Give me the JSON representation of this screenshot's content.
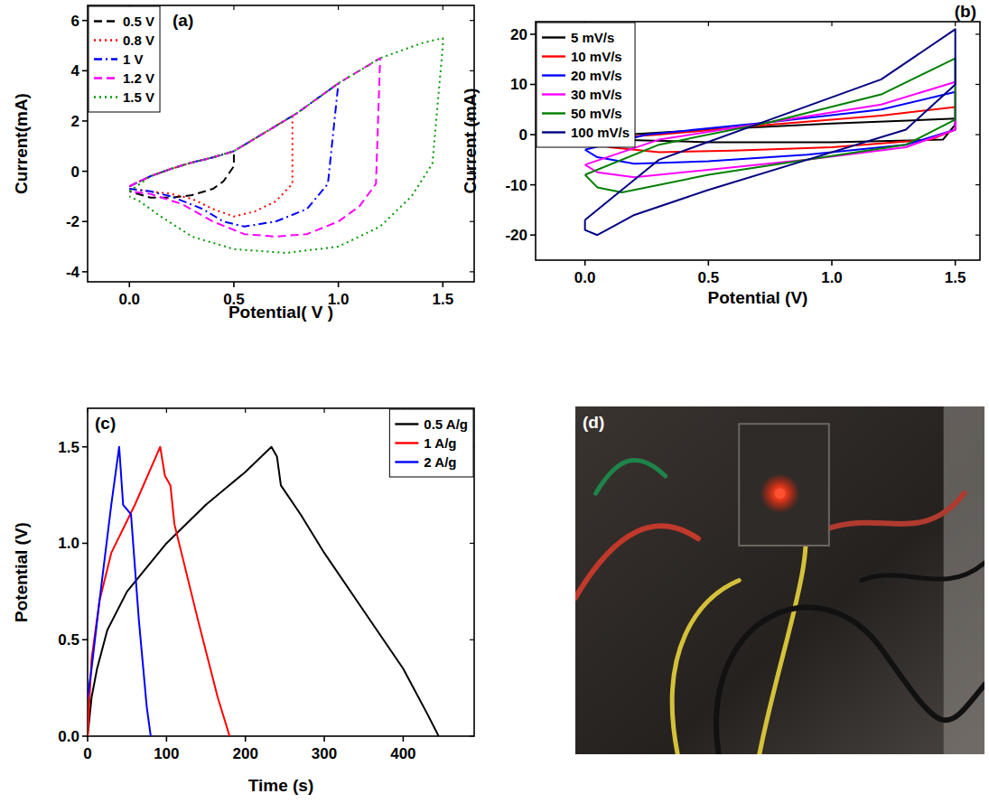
{
  "chart_data": [
    {
      "type": "line",
      "title": "(a)",
      "x_label": "Potential( V )",
      "y_label": "Current(mA)",
      "xlim": [
        -0.2,
        1.65
      ],
      "ylim": [
        -4.4,
        6.6
      ],
      "xticks": [
        {
          "value": 0,
          "label": "0.0"
        },
        0.5,
        {
          "value": 1,
          "label": "1.0"
        },
        1.5
      ],
      "yticks": [
        -4,
        -2,
        0,
        2,
        4,
        6
      ],
      "legend": "upper left",
      "series": [
        {
          "name": "0.5 V",
          "color": "#000000",
          "line_style": "dash",
          "x": [
            0,
            0.1,
            0.2,
            0.3,
            0.4,
            0.5,
            0.5,
            0.45,
            0.4,
            0.3,
            0.2,
            0.1,
            0
          ],
          "values": [
            -0.6,
            -0.2,
            0.1,
            0.35,
            0.55,
            0.8,
            0.2,
            -0.4,
            -0.7,
            -0.95,
            -1.05,
            -1.05,
            -0.8
          ]
        },
        {
          "name": "0.8 V",
          "color": "#ff0000",
          "line_style": "dot",
          "x": [
            0,
            0.1,
            0.2,
            0.3,
            0.4,
            0.5,
            0.6,
            0.7,
            0.78,
            0.78,
            0.7,
            0.6,
            0.5,
            0.4,
            0.3,
            0.2,
            0.1,
            0
          ],
          "values": [
            -0.6,
            -0.2,
            0.1,
            0.35,
            0.55,
            0.8,
            1.3,
            1.8,
            2.2,
            -0.5,
            -1.2,
            -1.6,
            -1.8,
            -1.5,
            -1.1,
            -0.9,
            -0.8,
            -0.7
          ]
        },
        {
          "name": "1 V",
          "color": "#0000ff",
          "line_style": "dashdot",
          "x": [
            0,
            0.1,
            0.2,
            0.3,
            0.4,
            0.5,
            0.6,
            0.7,
            0.8,
            0.9,
            1.0,
            0.95,
            0.85,
            0.7,
            0.55,
            0.45,
            0.35,
            0.2,
            0.1,
            0
          ],
          "values": [
            -0.6,
            -0.2,
            0.1,
            0.35,
            0.55,
            0.8,
            1.3,
            1.8,
            2.3,
            2.9,
            3.5,
            -0.5,
            -1.5,
            -2.0,
            -2.2,
            -2.0,
            -1.5,
            -1.0,
            -0.8,
            -0.7
          ]
        },
        {
          "name": "1.2 V",
          "color": "#ff00ff",
          "line_style": "dash",
          "x": [
            0,
            0.1,
            0.2,
            0.3,
            0.4,
            0.5,
            0.6,
            0.7,
            0.8,
            0.9,
            1.0,
            1.1,
            1.2,
            1.18,
            1.1,
            1.0,
            0.85,
            0.7,
            0.55,
            0.4,
            0.25,
            0.1,
            0
          ],
          "values": [
            -0.6,
            -0.2,
            0.1,
            0.35,
            0.55,
            0.8,
            1.3,
            1.8,
            2.3,
            2.9,
            3.5,
            4.0,
            4.5,
            -0.5,
            -1.4,
            -2.0,
            -2.5,
            -2.6,
            -2.5,
            -2.0,
            -1.3,
            -0.9,
            -0.8
          ]
        },
        {
          "name": "1.5 V",
          "color": "#009900",
          "line_style": "dot",
          "x": [
            0,
            0.1,
            0.2,
            0.3,
            0.4,
            0.5,
            0.6,
            0.7,
            0.8,
            0.9,
            1.0,
            1.1,
            1.2,
            1.3,
            1.4,
            1.5,
            1.5,
            1.45,
            1.35,
            1.2,
            1.0,
            0.75,
            0.5,
            0.3,
            0.15,
            0.05,
            0
          ],
          "values": [
            -0.8,
            -0.2,
            0.1,
            0.35,
            0.55,
            0.8,
            1.3,
            1.8,
            2.3,
            2.9,
            3.5,
            4.0,
            4.5,
            4.8,
            5.1,
            5.3,
            5.0,
            0.3,
            -1.0,
            -2.2,
            -3.0,
            -3.25,
            -3.1,
            -2.6,
            -1.8,
            -1.2,
            -1.0
          ]
        }
      ]
    },
    {
      "type": "line",
      "title": "(b)",
      "x_label": "Potential (V)",
      "y_label": "Current (mA)",
      "xlim": [
        -0.2,
        1.6
      ],
      "ylim": [
        -25,
        22.5
      ],
      "xticks": [
        {
          "value": 0,
          "label": "0.0"
        },
        0.5,
        {
          "value": 1,
          "label": "1.0"
        },
        1.5
      ],
      "yticks": [
        -20,
        -10,
        0,
        10,
        20
      ],
      "legend": "upper left",
      "series": [
        {
          "name": "5 mV/s",
          "color": "#000000",
          "line_style": "solid",
          "x": [
            0,
            0.5,
            1.0,
            1.5,
            1.5,
            1.45,
            1.0,
            0.5,
            0.1,
            0
          ],
          "values": [
            -0.5,
            1.0,
            2.2,
            3.2,
            2.0,
            -1.0,
            -1.5,
            -1.5,
            -1.0,
            -0.5
          ]
        },
        {
          "name": "10 mV/s",
          "color": "#ff0000",
          "line_style": "solid",
          "x": [
            0,
            0.3,
            0.75,
            1.2,
            1.5,
            1.5,
            1.4,
            1.0,
            0.6,
            0.3,
            0.1,
            0
          ],
          "values": [
            -1,
            0,
            2,
            3.8,
            5.5,
            1,
            -1,
            -2.5,
            -3.2,
            -3.5,
            -2.5,
            -1
          ]
        },
        {
          "name": "20 mV/s",
          "color": "#0000ff",
          "line_style": "solid",
          "x": [
            0,
            0.25,
            0.75,
            1.2,
            1.5,
            1.5,
            1.3,
            0.9,
            0.5,
            0.2,
            0.05,
            0
          ],
          "values": [
            -3,
            0,
            2.5,
            5,
            8.5,
            1,
            -2,
            -4,
            -5.3,
            -5.8,
            -4.5,
            -3
          ]
        },
        {
          "name": "30 mV/s",
          "color": "#ff00ff",
          "line_style": "solid",
          "x": [
            0,
            0.3,
            0.75,
            1.2,
            1.5,
            1.5,
            1.3,
            0.9,
            0.5,
            0.2,
            0.05,
            0
          ],
          "values": [
            -6,
            -1,
            2.5,
            6,
            10.5,
            1,
            -2.5,
            -5,
            -7,
            -8.5,
            -7.5,
            -6
          ]
        },
        {
          "name": "50 mV/s",
          "color": "#008000",
          "line_style": "solid",
          "x": [
            0,
            0.3,
            0.75,
            1.2,
            1.5,
            1.5,
            1.3,
            0.9,
            0.5,
            0.15,
            0.05,
            0
          ],
          "values": [
            -8,
            -2,
            2.5,
            8,
            15.2,
            3,
            -2,
            -5,
            -8,
            -11.5,
            -10.5,
            -8
          ]
        },
        {
          "name": "100 mV/s",
          "color": "#000080",
          "line_style": "solid",
          "x": [
            0,
            0.3,
            0.75,
            1.2,
            1.5,
            1.5,
            1.3,
            0.9,
            0.5,
            0.2,
            0.05,
            0,
            0
          ],
          "values": [
            -17,
            -5,
            3,
            11,
            21,
            10,
            1,
            -5,
            -11,
            -16,
            -20,
            -19,
            -17
          ]
        }
      ]
    },
    {
      "type": "line",
      "title": "(c)",
      "x_label": "Time (s)",
      "y_label": "Potential (V)",
      "xlim": [
        0,
        490
      ],
      "ylim": [
        0,
        1.7
      ],
      "xticks": [
        0,
        100,
        200,
        300,
        400
      ],
      "yticks": [
        {
          "value": 0,
          "label": "0.0"
        },
        0.5,
        {
          "value": 1,
          "label": "1.0"
        },
        1.5
      ],
      "legend": "upper right",
      "series": [
        {
          "name": "0.5 A/g",
          "color": "#000000",
          "line_style": "solid",
          "x": [
            0,
            5,
            12,
            25,
            50,
            100,
            150,
            200,
            233,
            240,
            245,
            270,
            300,
            350,
            400,
            430,
            445
          ],
          "values": [
            0,
            0.2,
            0.35,
            0.55,
            0.75,
            1.0,
            1.2,
            1.37,
            1.5,
            1.45,
            1.3,
            1.15,
            0.95,
            0.65,
            0.35,
            0.12,
            0
          ]
        },
        {
          "name": "1 A/g",
          "color": "#ff0000",
          "line_style": "solid",
          "x": [
            0,
            5,
            15,
            30,
            60,
            92,
            98,
            105,
            110,
            140,
            165,
            180
          ],
          "values": [
            0,
            0.4,
            0.7,
            0.95,
            1.2,
            1.5,
            1.35,
            1.3,
            1.1,
            0.6,
            0.2,
            0
          ]
        },
        {
          "name": "2 A/g",
          "color": "#0000ff",
          "line_style": "solid",
          "x": [
            0,
            5,
            15,
            30,
            40,
            45,
            55,
            65,
            75,
            80
          ],
          "values": [
            0.2,
            0.35,
            0.7,
            1.2,
            1.5,
            1.2,
            1.15,
            0.6,
            0.15,
            0
          ]
        }
      ]
    },
    {
      "type": "image",
      "title": "(d)"
    }
  ]
}
